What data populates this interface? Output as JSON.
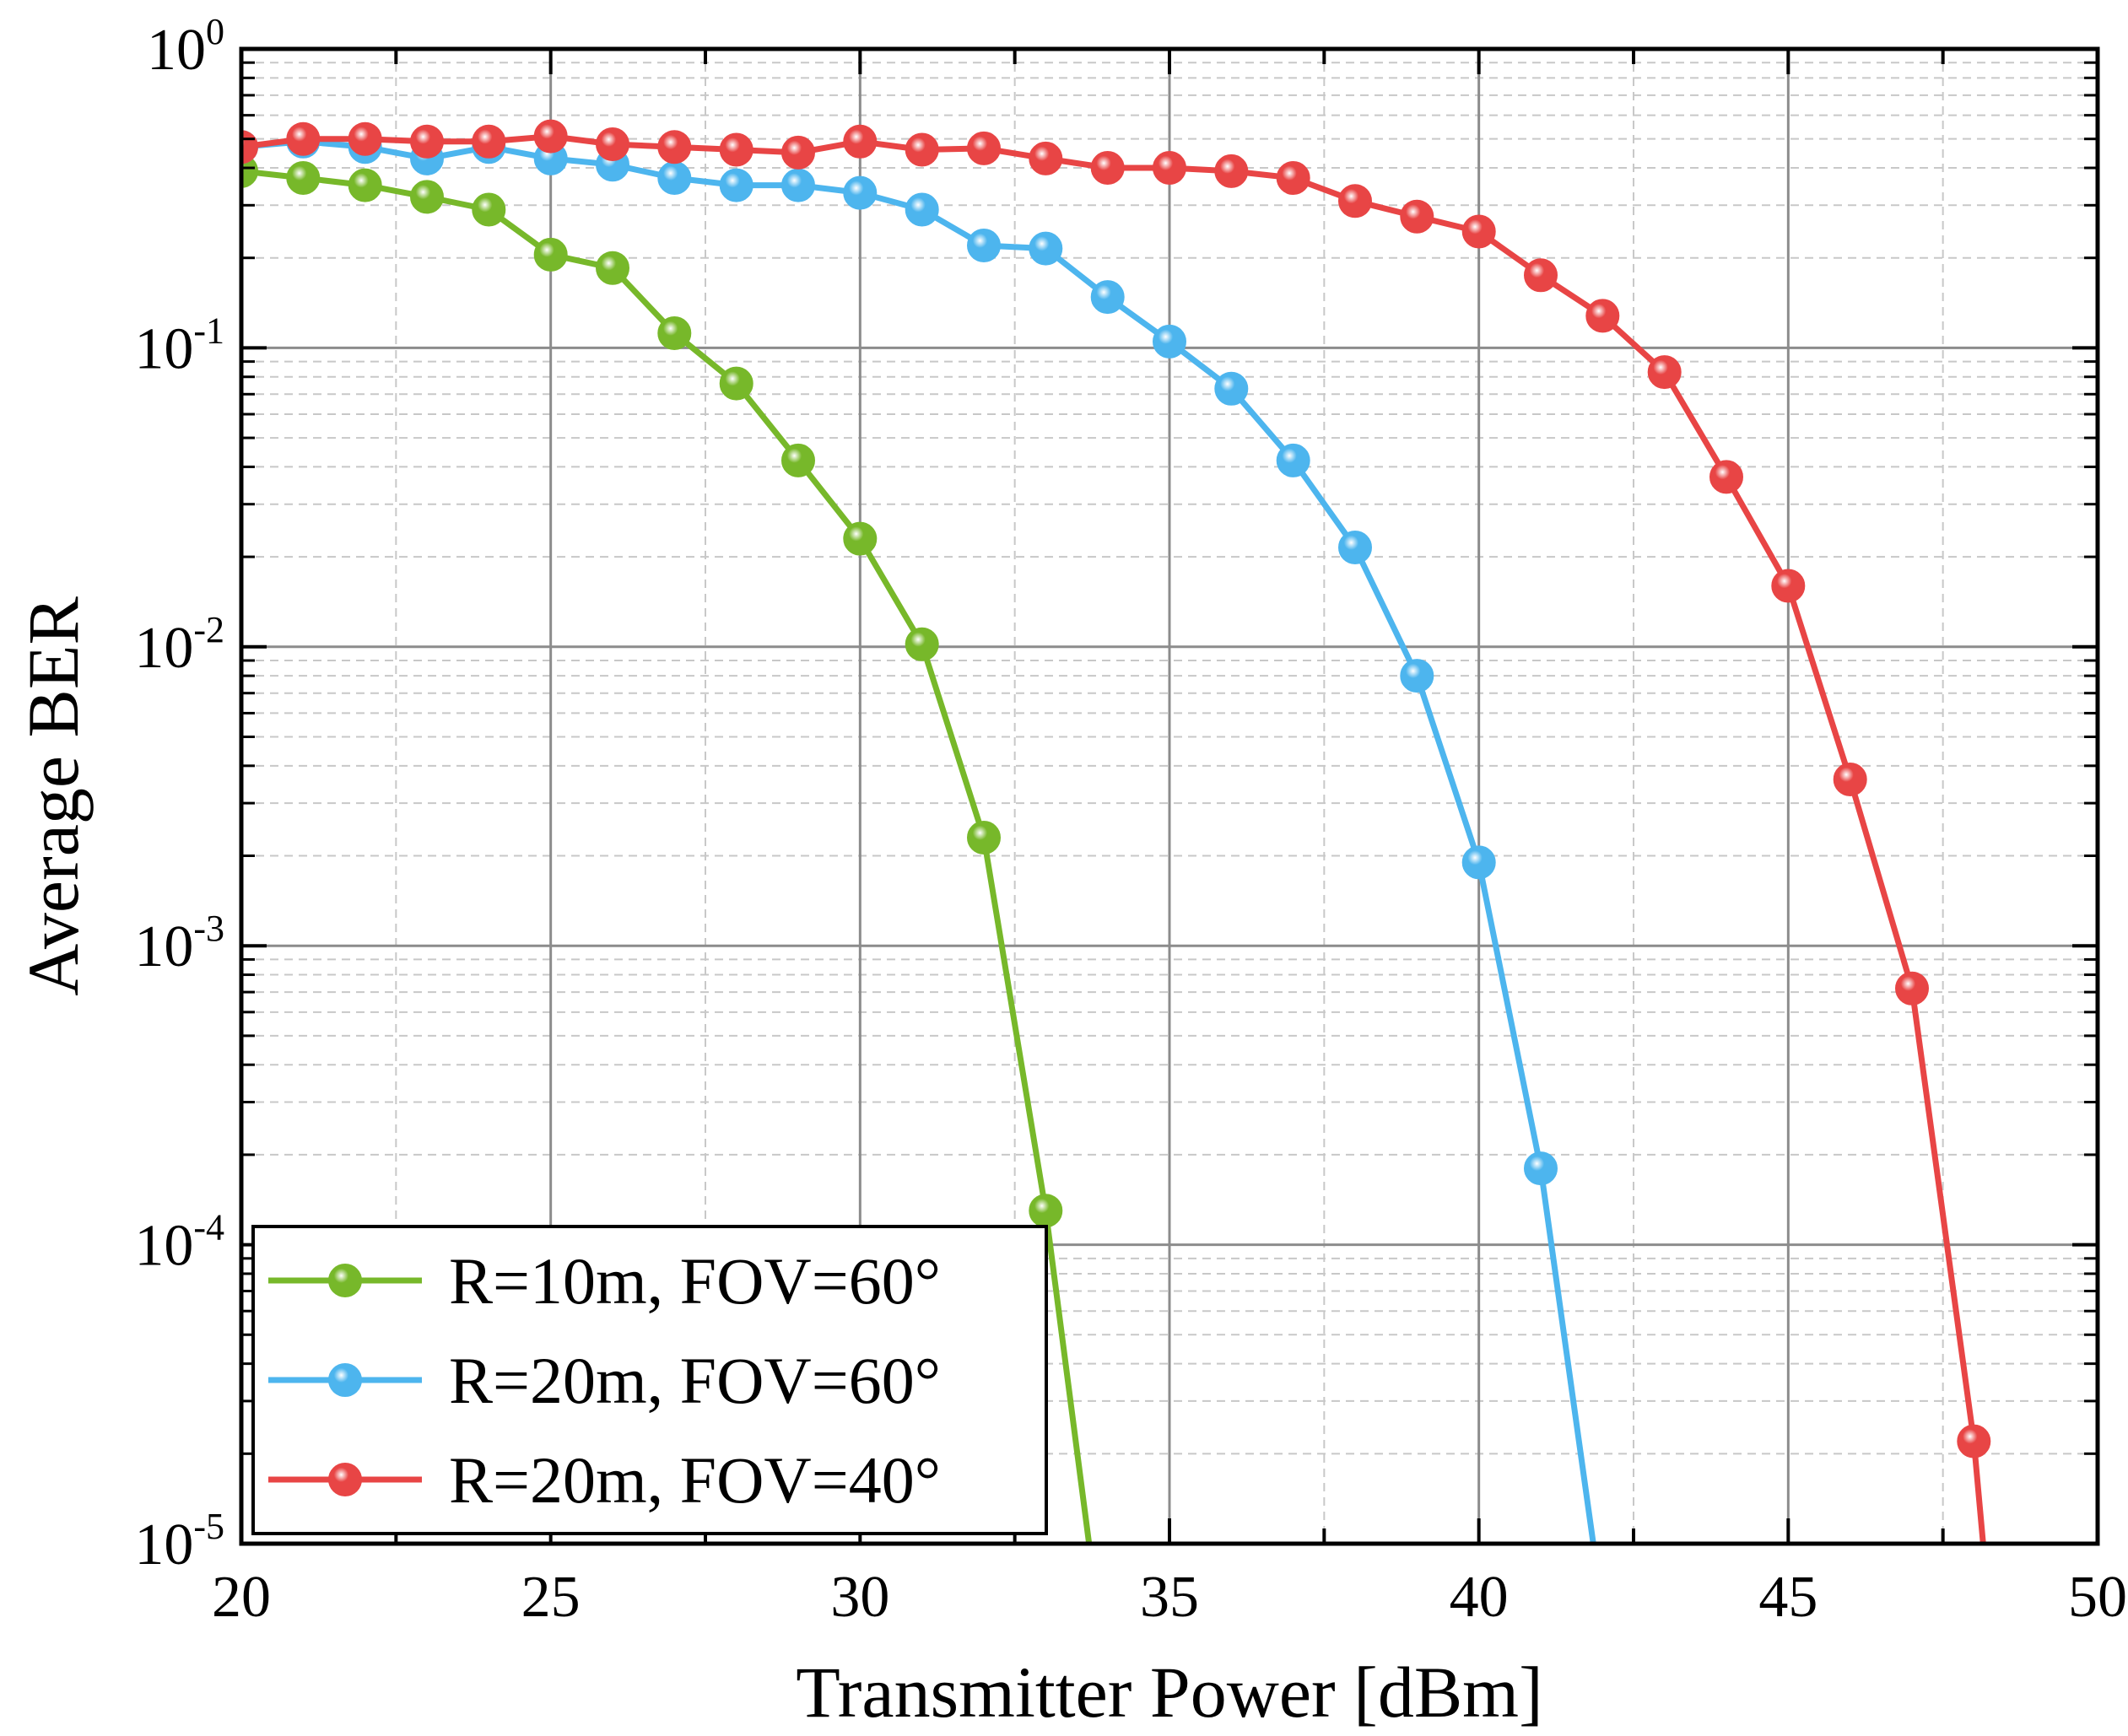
{
  "chart_data": {
    "type": "line",
    "xlabel": "Transmitter Power [dBm]",
    "ylabel": "Average BER",
    "yscale": "log",
    "xlim": [
      20,
      50
    ],
    "ylim": [
      1e-05,
      1
    ],
    "x_ticks": [
      20,
      25,
      30,
      35,
      40,
      45,
      50
    ],
    "y_ticks": [
      {
        "value": 1,
        "base": "10",
        "exp": "0"
      },
      {
        "value": 0.1,
        "base": "10",
        "exp": "-1"
      },
      {
        "value": 0.01,
        "base": "10",
        "exp": "-2"
      },
      {
        "value": 0.001,
        "base": "10",
        "exp": "-3"
      },
      {
        "value": 0.0001,
        "base": "10",
        "exp": "-4"
      },
      {
        "value": 1e-05,
        "base": "10",
        "exp": "-5"
      }
    ],
    "grid": true,
    "legend_position": "bottom-left",
    "series": [
      {
        "name": "R=10m, FOV=60°",
        "color": "#77b82a",
        "x": [
          20,
          21,
          22,
          23,
          24,
          25,
          26,
          27,
          28,
          29,
          30,
          31,
          32,
          33
        ],
        "values": [
          0.39,
          0.37,
          0.35,
          0.32,
          0.29,
          0.205,
          0.185,
          0.112,
          0.076,
          0.042,
          0.023,
          0.0102,
          0.0023,
          0.00013
        ],
        "tail": {
          "x": 33.7,
          "value": 1e-05
        }
      },
      {
        "name": "R=20m, FOV=60°",
        "color": "#4db5ee",
        "x": [
          20,
          21,
          22,
          23,
          24,
          25,
          26,
          27,
          28,
          29,
          30,
          31,
          32,
          33,
          34,
          35,
          36,
          37,
          38,
          39,
          40,
          41
        ],
        "values": [
          0.47,
          0.49,
          0.47,
          0.43,
          0.47,
          0.43,
          0.41,
          0.37,
          0.35,
          0.35,
          0.33,
          0.29,
          0.22,
          0.215,
          0.148,
          0.105,
          0.073,
          0.042,
          0.0215,
          0.008,
          0.0019,
          0.00018
        ],
        "tail": {
          "x": 41.85,
          "value": 1e-05
        }
      },
      {
        "name": "R=20m, FOV=40°",
        "color": "#e84545",
        "x": [
          20,
          21,
          22,
          23,
          24,
          25,
          26,
          27,
          28,
          29,
          30,
          31,
          32,
          33,
          34,
          35,
          36,
          37,
          38,
          39,
          40,
          41,
          42,
          43,
          44,
          45,
          46,
          47,
          48
        ],
        "values": [
          0.47,
          0.5,
          0.5,
          0.49,
          0.49,
          0.51,
          0.48,
          0.47,
          0.46,
          0.45,
          0.49,
          0.46,
          0.465,
          0.43,
          0.4,
          0.4,
          0.39,
          0.37,
          0.31,
          0.275,
          0.245,
          0.175,
          0.128,
          0.083,
          0.037,
          0.016,
          0.0036,
          0.00072,
          2.2e-05
        ],
        "tail": {
          "x": 48.15,
          "value": 1e-05
        }
      }
    ]
  }
}
